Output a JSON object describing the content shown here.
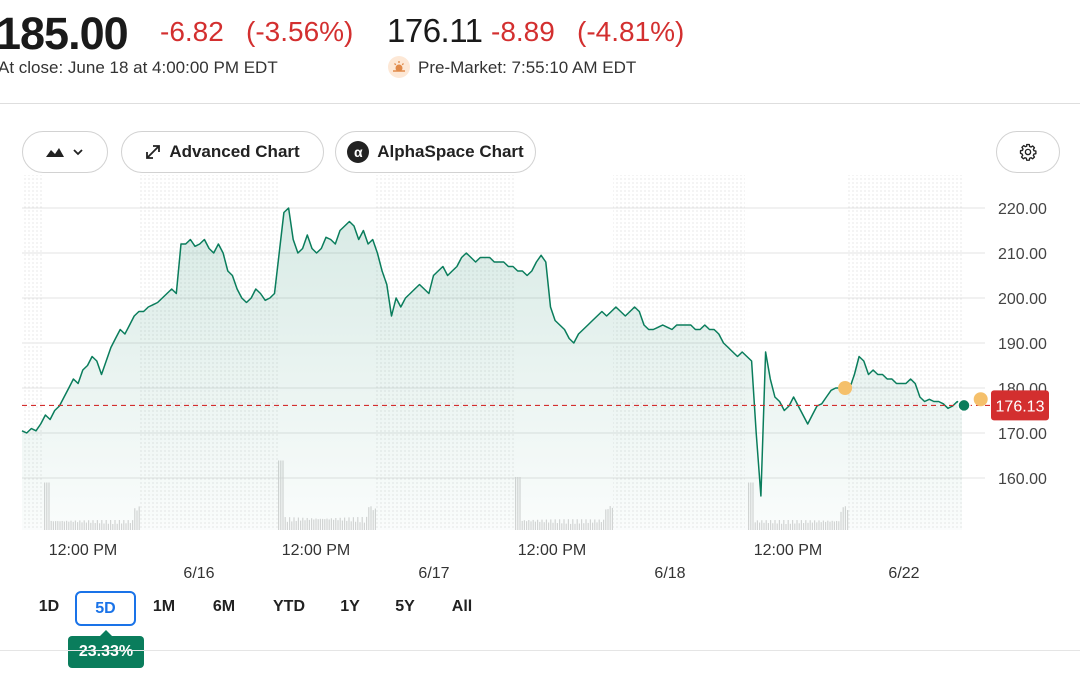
{
  "quote": {
    "close_price": "185.00",
    "close_change": "-6.82",
    "close_change_pct": "(-3.56%)",
    "close_label": "At close: June 18 at 4:00:00 PM EDT",
    "pre_price": "176.11",
    "pre_change": "-8.89",
    "pre_change_pct": "(-4.81%)",
    "pre_label": "Pre-Market: 7:55:10 AM EDT",
    "down_color": "#d32f2f"
  },
  "toolbar": {
    "chart_type_icon": "mountain-chart-icon",
    "advanced_label": "Advanced Chart",
    "alphaspace_label": "AlphaSpace Chart",
    "alpha_symbol": "α",
    "settings_icon": "gear-icon"
  },
  "ranges": {
    "tabs": [
      "1D",
      "5D",
      "1M",
      "6M",
      "YTD",
      "1Y",
      "5Y",
      "All"
    ],
    "active": "5D",
    "performance": "23.33%"
  },
  "chart_data": {
    "type": "area",
    "x_tick_labels": [
      "12:00 PM",
      "12:00 PM",
      "12:00 PM",
      "12:00 PM"
    ],
    "day_labels": [
      "6/16",
      "6/17",
      "6/18",
      "6/22"
    ],
    "y_ticks": [
      "220.00",
      "210.00",
      "200.00",
      "190.00",
      "180.00",
      "170.00",
      "160.00"
    ],
    "ylim": [
      150,
      226
    ],
    "current_price_label": "176.13",
    "reference_price": 176.13,
    "line_color": "#0a7d5c",
    "ref_line_color": "#d32f2f",
    "marker_color": "#f5c06b",
    "series": [
      {
        "values": [
          170.5,
          170,
          171,
          170.5,
          172,
          174,
          173,
          175,
          176,
          178,
          180,
          182,
          181,
          184,
          185,
          187,
          186,
          183,
          186,
          189,
          191,
          193,
          192,
          194,
          196,
          197,
          197,
          198,
          198.5,
          199,
          200,
          201,
          202,
          201,
          212,
          212,
          213,
          211.5,
          212,
          213,
          211,
          210,
          212,
          210,
          206,
          205,
          202,
          200,
          199,
          200,
          202,
          201,
          199.5,
          200,
          201,
          210,
          219,
          220,
          213,
          210,
          211,
          214,
          211,
          210,
          211,
          213.5,
          213,
          212,
          215,
          216,
          217,
          216,
          213,
          215,
          212,
          213,
          210,
          206,
          203,
          196,
          200,
          198,
          200,
          201,
          202,
          203,
          202,
          201,
          205,
          206,
          207,
          205,
          206,
          207,
          209,
          210,
          209,
          208,
          209,
          209,
          209,
          208,
          208,
          208,
          207,
          207,
          206,
          206,
          205,
          206,
          208,
          209.5,
          208,
          198,
          195,
          194,
          193,
          191,
          190,
          192,
          193,
          194,
          195,
          196,
          197,
          196,
          197,
          198,
          197,
          196,
          197,
          198,
          197,
          194,
          193,
          193,
          193.5,
          194,
          193.5,
          193,
          194,
          194,
          194,
          194,
          193,
          193,
          194,
          193,
          193,
          192,
          190,
          189,
          188,
          187,
          188,
          187,
          186,
          170,
          156,
          188,
          182,
          178,
          177,
          175,
          176,
          178,
          176,
          174,
          172,
          174,
          176,
          176.5,
          178,
          179.5,
          180,
          180,
          181,
          180,
          183,
          187,
          186,
          183,
          184,
          183,
          183,
          182,
          182,
          181,
          181,
          181,
          182,
          181,
          178,
          177,
          177.5,
          177,
          177,
          176.5,
          175.5,
          176,
          177,
          176
        ]
      }
    ],
    "markers": [
      {
        "index": 176,
        "value": 180
      },
      {
        "index": 205,
        "value": 177.5
      }
    ]
  }
}
